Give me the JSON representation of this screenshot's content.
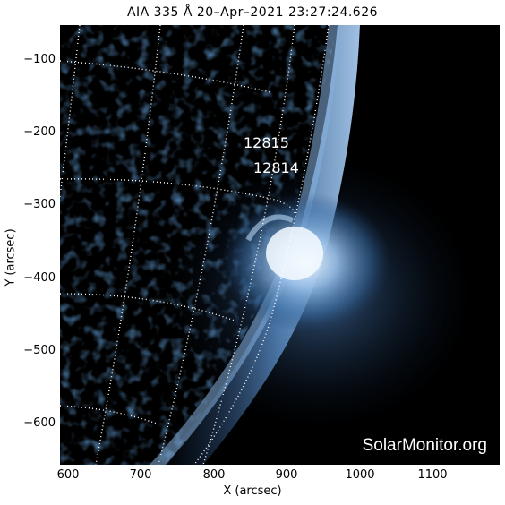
{
  "title": "AIA 335 Å 20–Apr–2021 23:27:24.626",
  "xlabel": "X (arcsec)",
  "ylabel": "Y (arcsec)",
  "yticks": [
    "−100",
    "−200",
    "−300",
    "−400",
    "−500",
    "−600"
  ],
  "xticks": [
    "600",
    "700",
    "800",
    "900",
    "1000",
    "1100"
  ],
  "regions": [
    "12815",
    "12814"
  ],
  "credit": "SolarMonitor.org",
  "colors": {
    "sky": "#000000",
    "plasma_mid": "#2e5c8e",
    "plasma_bright": "#cfe3f7"
  }
}
